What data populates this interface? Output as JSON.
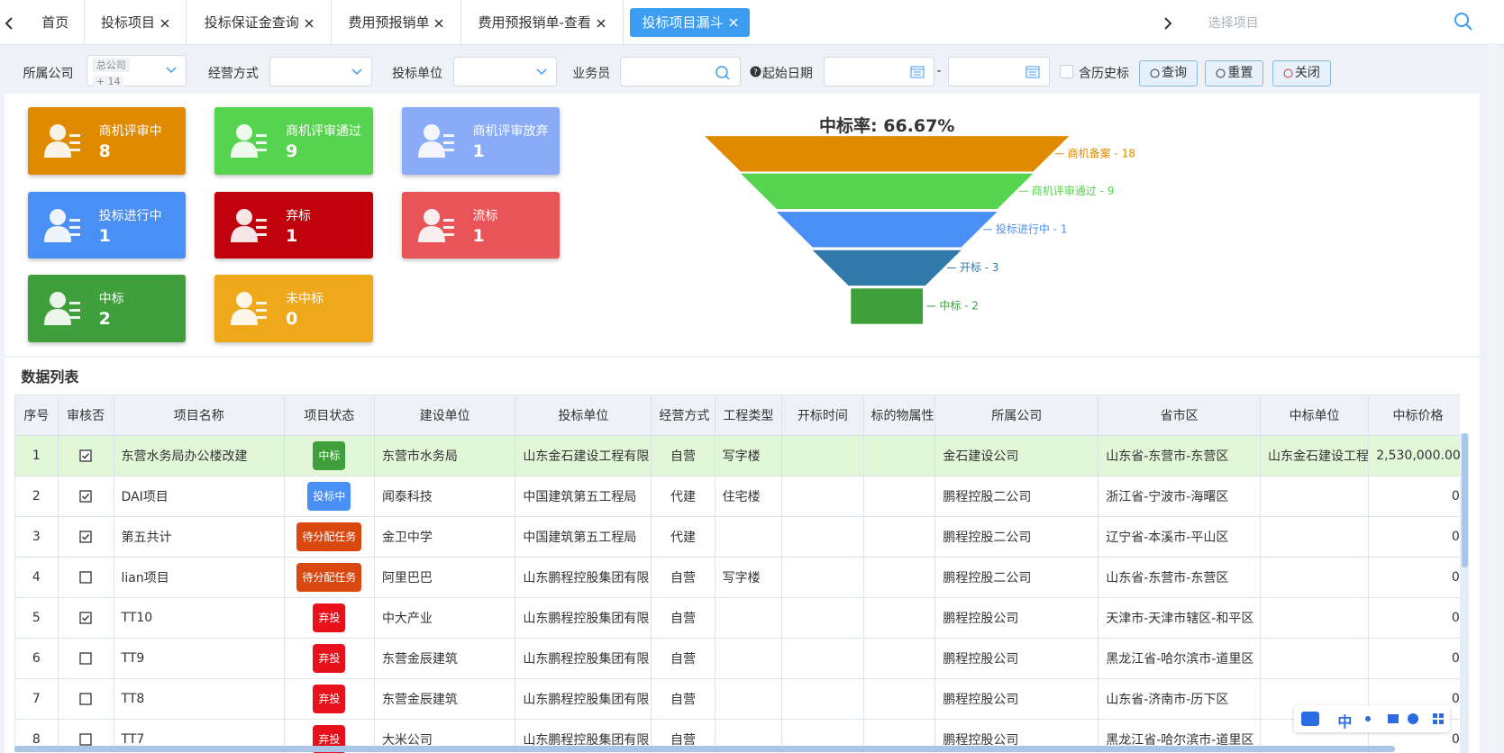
{
  "tabs": [
    "首页",
    "投标项目",
    "投标保证金查询",
    "费用预报销单",
    "费用预报销单-查看",
    "投标项目漏斗"
  ],
  "search_placeholder": "选择项目",
  "filters": {
    "company_label": "所属公司",
    "company_tag": "总公司",
    "company_more": "+ 14",
    "mode_label": "经营方式",
    "unit_label": "投标单位",
    "staff_label": "业务员",
    "date_label": "起始日期",
    "date_sep": "-",
    "history_label": "含历史标",
    "buttons": [
      "查询",
      "重置",
      "关闭"
    ]
  },
  "cards": [
    {
      "label": "商机评审中",
      "value": "8",
      "color": "#e08a00"
    },
    {
      "label": "商机评审通过",
      "value": "9",
      "color": "#57d44f"
    },
    {
      "label": "商机评审放弃",
      "value": "1",
      "color": "#8aabf7"
    },
    {
      "label": "投标进行中",
      "value": "1",
      "color": "#4a8ff5"
    },
    {
      "label": "弃标",
      "value": "1",
      "color": "#c0000b"
    },
    {
      "label": "流标",
      "value": "1",
      "color": "#e95458"
    },
    {
      "label": "中标",
      "value": "2",
      "color": "#3f9f3a"
    },
    {
      "label": "未中标",
      "value": "0",
      "color": "#eea81a"
    }
  ],
  "chart_data": {
    "type": "funnel",
    "title": "中标率: 66.67%",
    "categories": [
      "商机备案",
      "商机评审通过",
      "投标进行中",
      "开标",
      "中标"
    ],
    "values": [
      18,
      9,
      1,
      3,
      2
    ],
    "value_labels": [
      "商机备案 - 18",
      "商机评审通过 - 9",
      "投标进行中 - 1",
      "开标 - 3",
      "中标 - 2"
    ],
    "colors": [
      "#e08a00",
      "#57d44f",
      "#4a8ff5",
      "#2f7aa8",
      "#3f9f3a"
    ]
  },
  "table": {
    "title": "数据列表",
    "columns": [
      "序号",
      "审核否",
      "项目名称",
      "项目状态",
      "建设单位",
      "投标单位",
      "经营方式",
      "工程类型",
      "开标时间",
      "标的物属性",
      "所属公司",
      "省市区",
      "中标单位",
      "中标价格"
    ],
    "rows": [
      {
        "checked": true,
        "status_color": "#3f9f3a",
        "cells": [
          "1",
          "东营水务局办公楼改建",
          "中标",
          "东营市水务局",
          "山东金石建设工程有限",
          "自营",
          "写字楼",
          null,
          null,
          "金石建设公司",
          "山东省-东营市-东营区",
          "山东金石建设工程",
          "2,530,000.00"
        ]
      },
      {
        "checked": true,
        "status_color": "#4a8ff5",
        "cells": [
          "2",
          "DAI项目",
          "投标中",
          "闻泰科技",
          "中国建筑第五工程局",
          "代建",
          "住宅楼",
          null,
          null,
          "鹏程控股二公司",
          "浙江省-宁波市-海曙区",
          null,
          "0"
        ]
      },
      {
        "checked": true,
        "status_color": "#d9480f",
        "cells": [
          "3",
          "第五共计",
          "待分配任务",
          "金卫中学",
          "中国建筑第五工程局",
          "代建",
          null,
          null,
          null,
          "鹏程控股二公司",
          "辽宁省-本溪市-平山区",
          null,
          "0"
        ]
      },
      {
        "checked": false,
        "status_color": "#d9480f",
        "cells": [
          "4",
          "lian项目",
          "待分配任务",
          "阿里巴巴",
          "山东鹏程控股集团有限",
          "自营",
          "写字楼",
          null,
          null,
          "鹏程控股二公司",
          "山东省-东营市-东营区",
          null,
          "0"
        ]
      },
      {
        "checked": true,
        "status_color": "#e8101a",
        "cells": [
          "5",
          "TT10",
          "弃投",
          "中大产业",
          "山东鹏程控股集团有限",
          "自营",
          null,
          null,
          null,
          "鹏程控股公司",
          "天津市-天津市辖区-和平区",
          null,
          "0"
        ]
      },
      {
        "checked": false,
        "status_color": "#e8101a",
        "cells": [
          "6",
          "TT9",
          "弃投",
          "东营金辰建筑",
          "山东鹏程控股集团有限",
          "自营",
          null,
          null,
          null,
          "鹏程控股公司",
          "黑龙江省-哈尔滨市-道里区",
          null,
          "0"
        ]
      },
      {
        "checked": false,
        "status_color": "#e8101a",
        "cells": [
          "7",
          "TT8",
          "弃投",
          "东营金辰建筑",
          "山东鹏程控股集团有限",
          "自营",
          null,
          null,
          null,
          "鹏程控股公司",
          "山东省-济南市-历下区",
          null,
          "0"
        ]
      },
      {
        "checked": false,
        "status_color": "#e8101a",
        "cells": [
          "8",
          "TT7",
          "弃投",
          "大米公司",
          "山东鹏程控股集团有限",
          "自营",
          null,
          null,
          null,
          "鹏程控股公司",
          "黑龙江省-哈尔滨市-道里区",
          null,
          "0"
        ]
      }
    ]
  },
  "ime_toolbar": "中"
}
